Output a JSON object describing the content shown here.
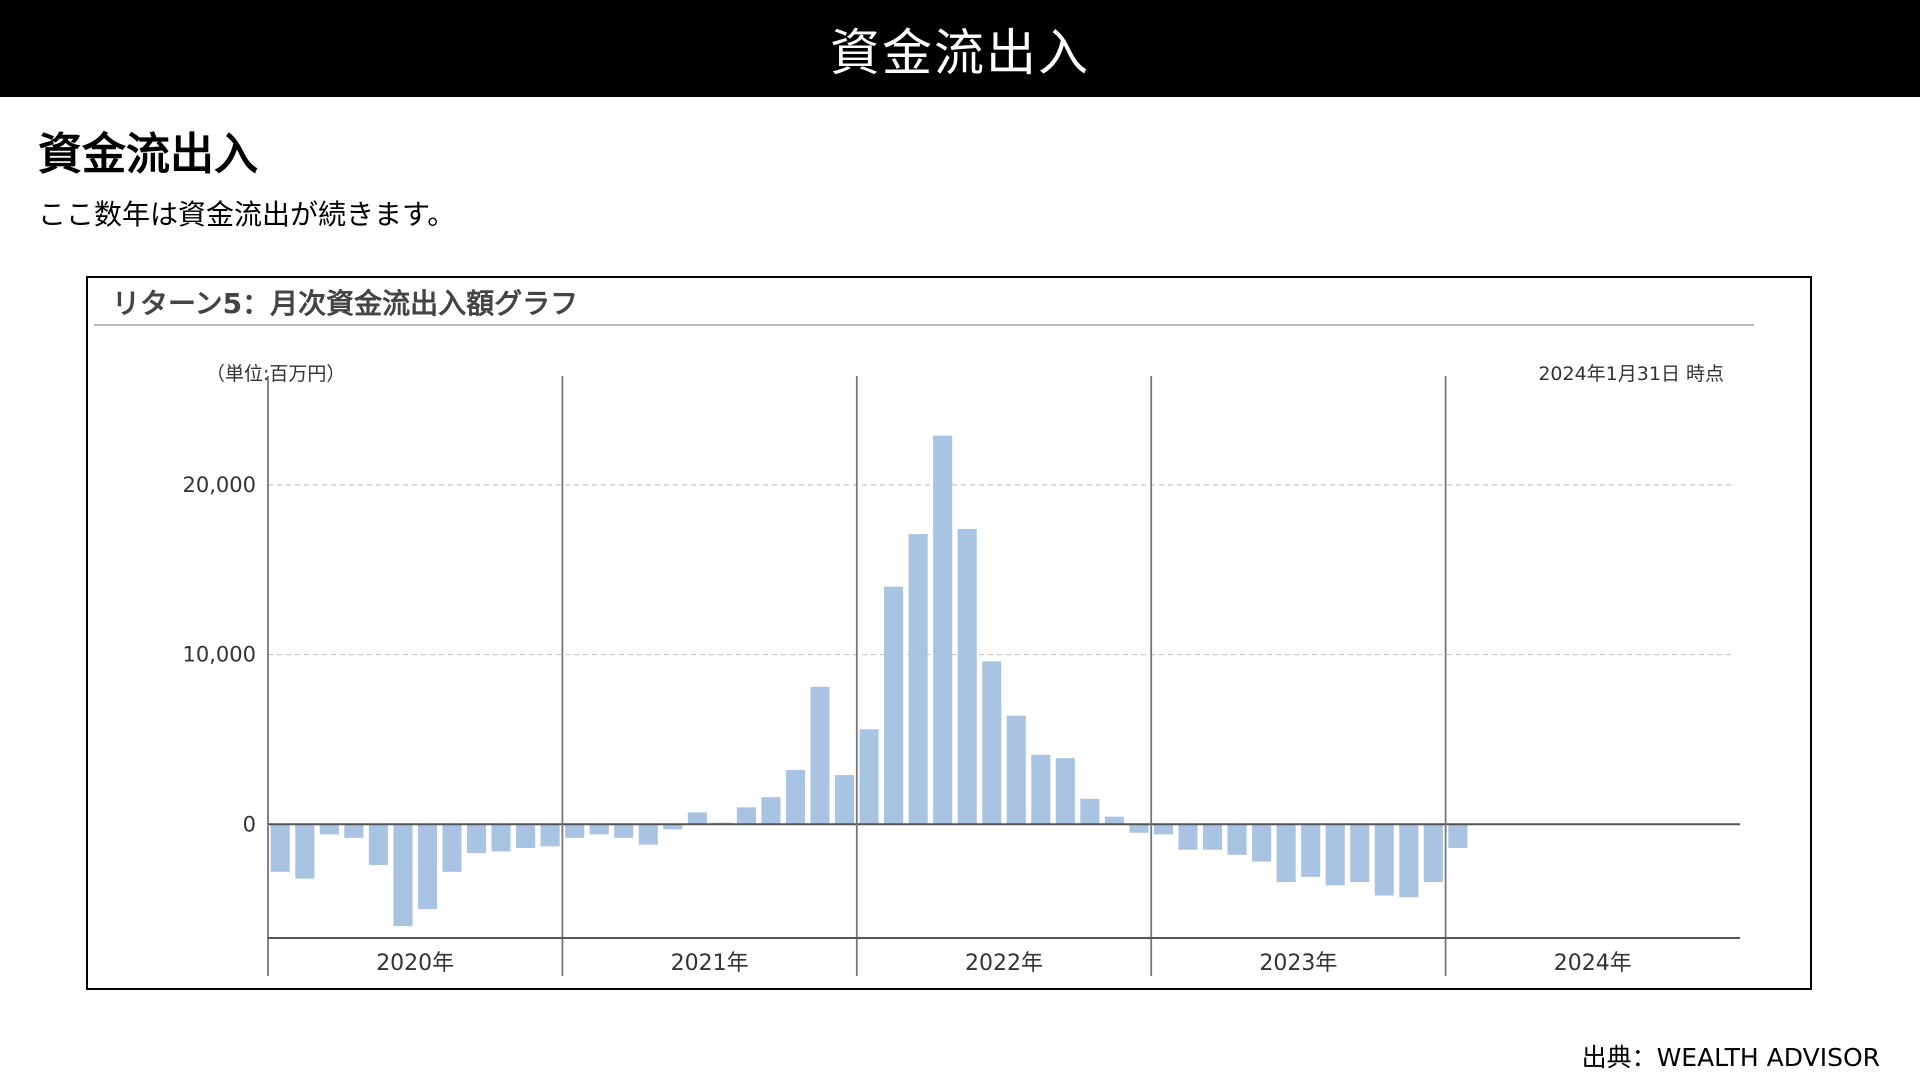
{
  "banner": {
    "title": "資金流出入"
  },
  "heading": "資金流出入",
  "subtitle": "ここ数年は資金流出が続きます。",
  "source": "出典：WEALTH ADVISOR",
  "colors": {
    "bar": "#a9c4e2",
    "axis": "#555555",
    "grid": "#c8c8c8"
  },
  "chart_data": {
    "type": "bar",
    "title": "リターン5：月次資金流出入額グラフ",
    "unit_label": "（単位:百万円）",
    "as_of": "2024年1月31日 時点",
    "ylim": [
      -6700,
      25000
    ],
    "yticks": [
      0,
      10000,
      20000
    ],
    "ytick_labels": [
      "0",
      "10,000",
      "20,000"
    ],
    "grid": true,
    "year_labels": [
      "2020年",
      "2021年",
      "2022年",
      "2023年",
      "2024年"
    ],
    "values": [
      [
        -2800,
        -3200,
        -600,
        -800,
        -2400,
        -6000,
        -5000,
        -2800,
        -1700,
        -1600,
        -1400,
        -1300
      ],
      [
        -800,
        -600,
        -800,
        -1200,
        -300,
        700,
        100,
        1000,
        1600,
        3200,
        8100,
        2900
      ],
      [
        5600,
        14000,
        17100,
        22900,
        17400,
        9600,
        6400,
        4100,
        3900,
        1500,
        450,
        -500
      ],
      [
        -600,
        -1500,
        -1500,
        -1800,
        -2200,
        -3400,
        -3100,
        -3600,
        -3400,
        -4200,
        -4300,
        -3400
      ],
      [
        -1400
      ]
    ]
  }
}
